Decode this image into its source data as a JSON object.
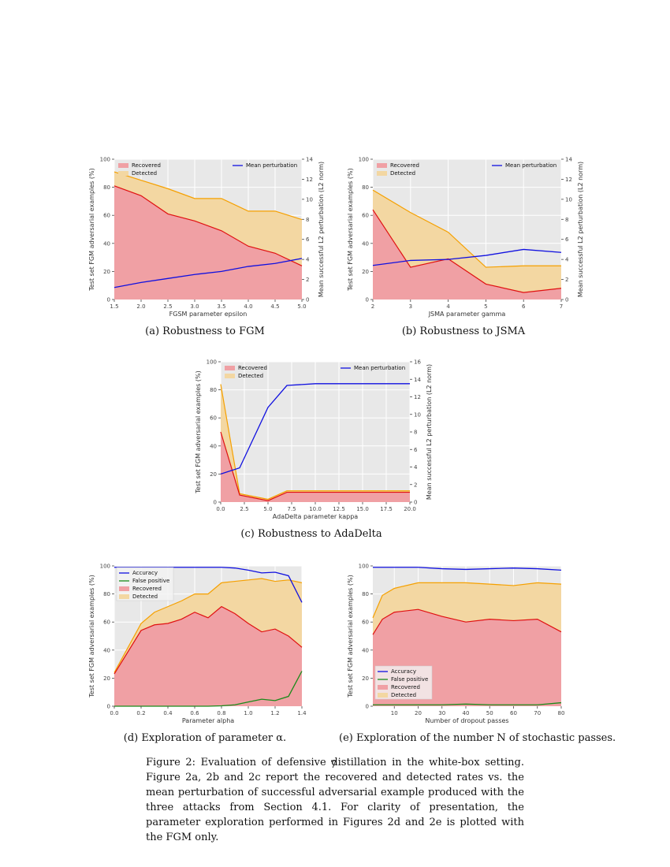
{
  "page_number": "7",
  "captions": {
    "a": "(a) Robustness to FGM",
    "b": "(b) Robustness to JSMA",
    "c": "(c) Robustness to AdaDelta",
    "d": "(d) Exploration of parameter α.",
    "e": "(e) Exploration of the number N of stochastic passes."
  },
  "figure_caption": "Figure 2: Evaluation of defensive distillation in the white-box setting. Figure 2a, 2b and 2c report the recovered and detected rates vs. the mean perturbation of successful adversarial example produced with the three attacks from Section 4.1. For clarity of presentation, the parameter exploration performed in Figures 2d and 2e is plotted with the FGM only.",
  "colors": {
    "recovered_fill": "#f0a0a4",
    "recovered_line": "#e01010",
    "detected_fill": "#f3d7a2",
    "detected_line": "#f5a000",
    "perturbation_line": "#1010e0",
    "accuracy_line": "#1010e0",
    "false_positive_line": "#1a8a1a",
    "plot_bg": "#e8e8e8"
  },
  "chart_data": [
    {
      "id": "a",
      "type": "area",
      "xlabel": "FGSM parameter epsilon",
      "ylabel": "Test set FGM adversarial examples (%)",
      "y2label": "Mean successful L2 perturbation (L2 norm)",
      "xlim": [
        1.5,
        5.0
      ],
      "ylim": [
        0,
        100
      ],
      "y2lim": [
        0,
        14
      ],
      "xticks": [
        1.5,
        2.0,
        2.5,
        3.0,
        3.5,
        4.0,
        4.5,
        5.0
      ],
      "xtick_labels": [
        "1.5",
        "2.0",
        "2.5",
        "3.0",
        "3.5",
        "4.0",
        "4.5",
        "5.0"
      ],
      "yticks": [
        0,
        20,
        40,
        60,
        80,
        100
      ],
      "ytick_labels": [
        "0",
        "20",
        "40",
        "60",
        "80",
        "100"
      ],
      "y2ticks": [
        0,
        2,
        4,
        6,
        8,
        10,
        12,
        14
      ],
      "y2tick_labels": [
        "0",
        "2",
        "4",
        "6",
        "8",
        "10",
        "12",
        "14"
      ],
      "x": [
        1.5,
        2.0,
        2.5,
        3.0,
        3.5,
        4.0,
        4.5,
        5.0
      ],
      "series": [
        {
          "name": "Detected",
          "kind": "area",
          "values": [
            91,
            85,
            79,
            72,
            72,
            63,
            63,
            57
          ]
        },
        {
          "name": "Recovered",
          "kind": "area",
          "values": [
            81,
            74,
            61,
            56,
            49,
            38,
            33,
            24
          ]
        },
        {
          "name": "Mean perturbation",
          "kind": "line",
          "axis": "y2",
          "values": [
            1.2,
            1.7,
            2.1,
            2.5,
            2.8,
            3.3,
            3.6,
            4.1
          ]
        }
      ],
      "legend_left": [
        "Recovered",
        "Detected"
      ],
      "legend_right": [
        "Mean perturbation"
      ]
    },
    {
      "id": "b",
      "type": "area",
      "xlabel": "JSMA parameter gamma",
      "ylabel": "Test set FGM adversarial examples (%)",
      "y2label": "Mean successful L2 perturbation (L2 norm)",
      "xlim": [
        2,
        7
      ],
      "ylim": [
        0,
        100
      ],
      "y2lim": [
        0,
        14
      ],
      "xticks": [
        2,
        3,
        4,
        5,
        6,
        7
      ],
      "xtick_labels": [
        "2",
        "3",
        "4",
        "5",
        "6",
        "7"
      ],
      "yticks": [
        0,
        20,
        40,
        60,
        80,
        100
      ],
      "ytick_labels": [
        "0",
        "20",
        "40",
        "60",
        "80",
        "100"
      ],
      "y2ticks": [
        0,
        2,
        4,
        6,
        8,
        10,
        12,
        14
      ],
      "y2tick_labels": [
        "0",
        "2",
        "4",
        "6",
        "8",
        "10",
        "12",
        "14"
      ],
      "x": [
        2,
        3,
        4,
        5,
        6,
        7
      ],
      "series": [
        {
          "name": "Detected",
          "kind": "area",
          "values": [
            78,
            62,
            48,
            23,
            24,
            24
          ]
        },
        {
          "name": "Recovered",
          "kind": "area",
          "values": [
            64,
            23,
            29,
            11,
            5,
            8
          ]
        },
        {
          "name": "Mean perturbation",
          "kind": "line",
          "axis": "y2",
          "values": [
            3.4,
            3.9,
            4.0,
            4.4,
            5.0,
            4.7
          ]
        }
      ],
      "legend_left": [
        "Recovered",
        "Detected"
      ],
      "legend_right": [
        "Mean perturbation"
      ]
    },
    {
      "id": "c",
      "type": "area",
      "xlabel": "AdaDelta parameter kappa",
      "ylabel": "Test set FGM adversarial examples (%)",
      "y2label": "Mean successful L2 perturbation (L2 norm)",
      "xlim": [
        0,
        20
      ],
      "ylim": [
        0,
        100
      ],
      "y2lim": [
        0,
        16
      ],
      "xticks": [
        0,
        2.5,
        5,
        7.5,
        10,
        12.5,
        15,
        17.5,
        20
      ],
      "xtick_labels": [
        "0.0",
        "2.5",
        "5.0",
        "7.5",
        "10.0",
        "12.5",
        "15.0",
        "17.5",
        "20.0"
      ],
      "yticks": [
        0,
        20,
        40,
        60,
        80,
        100
      ],
      "ytick_labels": [
        "0",
        "20",
        "40",
        "60",
        "80",
        "100"
      ],
      "y2ticks": [
        0,
        2,
        4,
        6,
        8,
        10,
        12,
        14,
        16
      ],
      "y2tick_labels": [
        "0",
        "2",
        "4",
        "6",
        "8",
        "10",
        "12",
        "14",
        "16"
      ],
      "x": [
        0,
        2,
        5,
        7,
        10,
        20
      ],
      "series": [
        {
          "name": "Detected",
          "kind": "area",
          "values": [
            84,
            6,
            2,
            8,
            8,
            8
          ]
        },
        {
          "name": "Recovered",
          "kind": "area",
          "values": [
            50,
            5,
            1,
            7,
            7,
            7
          ]
        },
        {
          "name": "Mean perturbation",
          "kind": "line",
          "axis": "y2",
          "x": [
            0,
            2,
            5,
            7,
            10,
            20
          ],
          "values": [
            3.2,
            3.9,
            10.8,
            13.3,
            13.5,
            13.5
          ]
        }
      ],
      "legend_left": [
        "Recovered",
        "Detected"
      ],
      "legend_right": [
        "Mean perturbation"
      ]
    },
    {
      "id": "d",
      "type": "area",
      "xlabel": "Parameter alpha",
      "ylabel": "Test set FGM adversarial examples (%)",
      "xlim": [
        0.0,
        1.4
      ],
      "ylim": [
        0,
        100
      ],
      "xticks": [
        0.0,
        0.2,
        0.4,
        0.6,
        0.8,
        1.0,
        1.2,
        1.4
      ],
      "xtick_labels": [
        "0.0",
        "0.2",
        "0.4",
        "0.6",
        "0.8",
        "1.0",
        "1.2",
        "1.4"
      ],
      "yticks": [
        0,
        20,
        40,
        60,
        80,
        100
      ],
      "ytick_labels": [
        "0",
        "20",
        "40",
        "60",
        "80",
        "100"
      ],
      "x": [
        0.0,
        0.2,
        0.3,
        0.4,
        0.5,
        0.6,
        0.7,
        0.8,
        0.9,
        1.0,
        1.1,
        1.2,
        1.3,
        1.4
      ],
      "series": [
        {
          "name": "Detected",
          "kind": "area",
          "values": [
            24,
            59,
            67,
            71,
            75,
            80,
            80,
            88,
            89,
            90,
            91,
            89,
            90,
            88
          ]
        },
        {
          "name": "Recovered",
          "kind": "area",
          "values": [
            23,
            54,
            58,
            59,
            62,
            67,
            63,
            71,
            66,
            59,
            53,
            55,
            50,
            42
          ]
        },
        {
          "name": "Accuracy",
          "kind": "line",
          "values": [
            99,
            99,
            99,
            99,
            99,
            99,
            99,
            99,
            98.5,
            97,
            95,
            95.5,
            93,
            74
          ]
        },
        {
          "name": "False positive",
          "kind": "line",
          "values": [
            0,
            0,
            0,
            0,
            0,
            0,
            0,
            0.3,
            1,
            3,
            5,
            4,
            7,
            25
          ]
        }
      ],
      "legend": [
        "Accuracy",
        "False positive",
        "Recovered",
        "Detected"
      ]
    },
    {
      "id": "e",
      "type": "area",
      "xlabel": "Number of dropout passes",
      "ylabel": "Test set FGM adversarial examples (%)",
      "xlim": [
        1,
        80
      ],
      "ylim": [
        0,
        100
      ],
      "xticks": [
        10,
        20,
        30,
        40,
        50,
        60,
        70,
        80
      ],
      "xtick_labels": [
        "10",
        "20",
        "30",
        "40",
        "50",
        "60",
        "70",
        "80"
      ],
      "yticks": [
        0,
        20,
        40,
        60,
        80,
        100
      ],
      "ytick_labels": [
        "0",
        "20",
        "40",
        "60",
        "80",
        "100"
      ],
      "x": [
        1,
        5,
        10,
        20,
        30,
        40,
        50,
        60,
        70,
        80
      ],
      "series": [
        {
          "name": "Detected",
          "kind": "area",
          "values": [
            63,
            79,
            84,
            88,
            88,
            88,
            87,
            86,
            88,
            87
          ]
        },
        {
          "name": "Recovered",
          "kind": "area",
          "values": [
            51,
            62,
            67,
            69,
            64,
            60,
            62,
            61,
            62,
            53
          ]
        },
        {
          "name": "Accuracy",
          "kind": "line",
          "values": [
            99,
            99,
            99,
            99,
            98,
            97.5,
            98,
            98.5,
            98,
            97
          ]
        },
        {
          "name": "False positive",
          "kind": "line",
          "values": [
            1,
            1,
            1,
            1,
            1,
            1.5,
            1,
            1,
            1,
            2.5
          ]
        }
      ],
      "legend": [
        "Accuracy",
        "False positive",
        "Recovered",
        "Detected"
      ]
    }
  ]
}
